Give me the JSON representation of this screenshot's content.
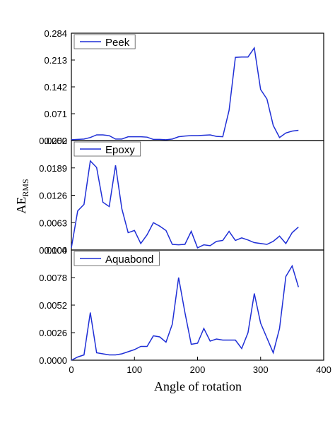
{
  "chart_data": [
    {
      "type": "line",
      "legend": "upper left",
      "x": [
        0,
        10,
        20,
        30,
        40,
        50,
        60,
        70,
        80,
        90,
        100,
        110,
        120,
        130,
        140,
        150,
        160,
        170,
        180,
        190,
        200,
        210,
        220,
        230,
        240,
        250,
        260,
        270,
        280,
        290,
        300,
        310,
        320,
        330,
        340,
        350,
        360
      ],
      "series": [
        {
          "name": "Peek",
          "color": "#1f2fd6",
          "values": [
            0.002,
            0.003,
            0.004,
            0.008,
            0.015,
            0.015,
            0.013,
            0.004,
            0.004,
            0.01,
            0.01,
            0.01,
            0.009,
            0.003,
            0.003,
            0.002,
            0.004,
            0.01,
            0.012,
            0.013,
            0.013,
            0.014,
            0.015,
            0.011,
            0.01,
            0.08,
            0.22,
            0.221,
            0.221,
            0.245,
            0.135,
            0.11,
            0.04,
            0.008,
            0.02,
            0.025,
            0.027
          ]
        }
      ],
      "xlim": [
        0,
        400
      ],
      "ylim": [
        0,
        0.284
      ],
      "yticks": [
        {
          "value": 0,
          "label": "0.000"
        },
        0.071,
        0.142,
        0.213,
        0.284
      ]
    },
    {
      "type": "line",
      "legend": "upper left",
      "ylabel": "AE",
      "ylabel_subscript": "RMS",
      "x": [
        0,
        10,
        20,
        30,
        40,
        50,
        60,
        70,
        80,
        90,
        100,
        110,
        120,
        130,
        140,
        150,
        160,
        170,
        180,
        190,
        200,
        210,
        220,
        230,
        240,
        250,
        260,
        270,
        280,
        290,
        300,
        310,
        320,
        330,
        340,
        350,
        360
      ],
      "series": [
        {
          "name": "Epoxy",
          "color": "#1f2fd6",
          "values": [
            0.0005,
            0.009,
            0.0105,
            0.0205,
            0.019,
            0.011,
            0.01,
            0.0195,
            0.0095,
            0.004,
            0.0045,
            0.0015,
            0.0035,
            0.0063,
            0.0055,
            0.0045,
            0.0013,
            0.0012,
            0.0013,
            0.0043,
            0.0005,
            0.0012,
            0.001,
            0.002,
            0.0022,
            0.0043,
            0.0022,
            0.0028,
            0.0023,
            0.0017,
            0.0015,
            0.0013,
            0.002,
            0.0032,
            0.0015,
            0.004,
            0.0053
          ]
        }
      ],
      "xlim": [
        0,
        400
      ],
      "ylim": [
        0,
        0.0252
      ],
      "yticks": [
        {
          "value": 0,
          "label": "0.000"
        },
        0.0063,
        0.0126,
        0.0189,
        0.0252
      ]
    },
    {
      "type": "line",
      "legend": "upper left",
      "xlabel": "Angle of rotation",
      "x": [
        0,
        10,
        20,
        30,
        40,
        50,
        60,
        70,
        80,
        90,
        100,
        110,
        120,
        130,
        140,
        150,
        160,
        170,
        180,
        190,
        200,
        210,
        220,
        230,
        240,
        250,
        260,
        270,
        280,
        290,
        300,
        310,
        320,
        330,
        340,
        350,
        360
      ],
      "series": [
        {
          "name": "Aquabond",
          "color": "#1f2fd6",
          "values": [
            0,
            0.0003,
            0.0005,
            0.0045,
            0.0007,
            0.0006,
            0.0005,
            0.0005,
            0.0006,
            0.0008,
            0.001,
            0.0013,
            0.0013,
            0.0023,
            0.0022,
            0.0017,
            0.0034,
            0.0078,
            0.0045,
            0.0015,
            0.0016,
            0.003,
            0.0018,
            0.002,
            0.0019,
            0.0019,
            0.0019,
            0.0011,
            0.0026,
            0.0063,
            0.0035,
            0.0021,
            0.0007,
            0.003,
            0.0079,
            0.0089,
            0.0069
          ]
        }
      ],
      "xlim": [
        0,
        400
      ],
      "xticks": [
        0,
        100,
        200,
        300,
        400
      ],
      "ylim": [
        0,
        0.0104
      ],
      "yticks": [
        {
          "value": 0,
          "label": "0.0000"
        },
        0.0026,
        0.0052,
        0.0078,
        0.0104
      ]
    }
  ]
}
